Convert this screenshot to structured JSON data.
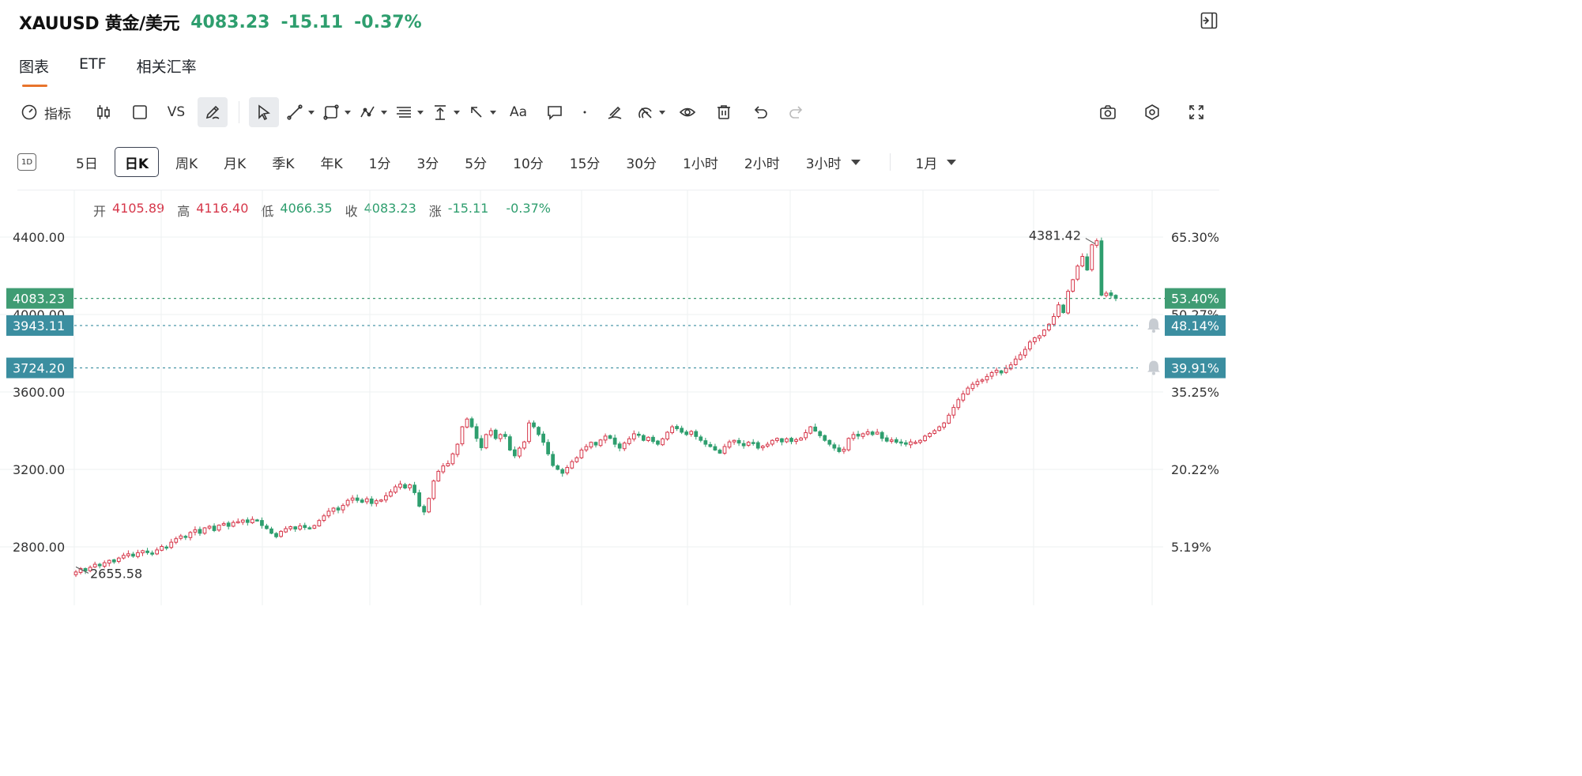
{
  "header": {
    "symbol": "XAUUSD 黄金/美元",
    "price": "4083.23",
    "change": "-15.11",
    "change_pct": "-0.37%",
    "collapse_icon": "collapse-panel-icon"
  },
  "tabs": [
    {
      "label": "图表",
      "active": true
    },
    {
      "label": "ETF",
      "active": false
    },
    {
      "label": "相关汇率",
      "active": false
    }
  ],
  "toolbar": {
    "indicators_label": "指标",
    "vs_label": "VS",
    "text_label": "Aa",
    "tools": [
      "candle-type-icon",
      "rectangle-icon",
      "pen-icon",
      "cursor-icon",
      "trend-line-icon",
      "shape-icon",
      "pattern-icon",
      "fib-icon",
      "measure-icon",
      "arrow-icon",
      "comment-icon",
      "brush-icon",
      "magnet-icon",
      "eye-icon",
      "trash-icon",
      "undo-icon",
      "redo-icon",
      "camera-icon",
      "settings-icon",
      "fullscreen-icon"
    ]
  },
  "periods": {
    "icon_label": "1D",
    "items": [
      "5日",
      "日K",
      "周K",
      "月K",
      "季K",
      "年K",
      "1分",
      "3分",
      "5分",
      "10分",
      "15分",
      "30分",
      "1小时",
      "2小时",
      "3小时"
    ],
    "active": "日K",
    "range": "1月"
  },
  "ohlc": {
    "open_label": "开",
    "open": "4105.89",
    "high_label": "高",
    "high": "4116.40",
    "low_label": "低",
    "low": "4066.35",
    "close_label": "收",
    "close": "4083.23",
    "change_label": "涨",
    "change": "-15.11",
    "change_pct": "-0.37%"
  },
  "colors": {
    "up": "#d6374a",
    "down": "#2e9e6e",
    "last_price_tag": "#3f9c73",
    "alert_tag": "#3b8ea0"
  },
  "chart_data": {
    "type": "candlestick",
    "y_ticks": [
      {
        "price": 4400,
        "label": "4400.00",
        "pct": "65.30%"
      },
      {
        "price": 4000,
        "label": "4000.00",
        "pct": "50.27%"
      },
      {
        "price": 3600,
        "label": "3600.00",
        "pct": "35.25%"
      },
      {
        "price": 3200,
        "label": "3200.00",
        "pct": "20.22%"
      },
      {
        "price": 2800,
        "label": "2800.00",
        "pct": "5.19%"
      }
    ],
    "ylim": [
      2570,
      4680
    ],
    "last_price": {
      "price": 4083.23,
      "label": "4083.23",
      "pct": "53.40%"
    },
    "alerts": [
      {
        "price": 3943.11,
        "label": "3943.11",
        "pct": "48.14%"
      },
      {
        "price": 3724.2,
        "label": "3724.20",
        "pct": "39.91%"
      }
    ],
    "max_marker": {
      "price": 4381.42,
      "label": "4381.42"
    },
    "min_marker": {
      "price": 2655.58,
      "label": "2655.58"
    },
    "closes": [
      2670,
      2688,
      2676,
      2694,
      2710,
      2702,
      2718,
      2730,
      2722,
      2742,
      2756,
      2764,
      2752,
      2770,
      2780,
      2770,
      2762,
      2784,
      2802,
      2796,
      2824,
      2842,
      2856,
      2850,
      2874,
      2888,
      2870,
      2898,
      2906,
      2884,
      2912,
      2920,
      2906,
      2926,
      2930,
      2938,
      2926,
      2942,
      2936,
      2910,
      2894,
      2870,
      2852,
      2880,
      2894,
      2904,
      2892,
      2908,
      2900,
      2894,
      2910,
      2936,
      2960,
      2984,
      3000,
      2990,
      3014,
      3040,
      3052,
      3040,
      3030,
      3048,
      3024,
      3038,
      3042,
      3064,
      3084,
      3110,
      3124,
      3104,
      3120,
      3080,
      3010,
      2980,
      3050,
      3140,
      3190,
      3218,
      3230,
      3280,
      3330,
      3420,
      3460,
      3420,
      3360,
      3312,
      3380,
      3400,
      3360,
      3380,
      3370,
      3300,
      3270,
      3310,
      3342,
      3440,
      3420,
      3380,
      3340,
      3280,
      3220,
      3200,
      3180,
      3210,
      3240,
      3260,
      3300,
      3318,
      3340,
      3326,
      3352,
      3372,
      3360,
      3330,
      3310,
      3336,
      3358,
      3384,
      3378,
      3350,
      3366,
      3344,
      3330,
      3358,
      3392,
      3420,
      3410,
      3392,
      3380,
      3396,
      3370,
      3350,
      3330,
      3318,
      3300,
      3284,
      3318,
      3342,
      3350,
      3336,
      3322,
      3340,
      3336,
      3310,
      3320,
      3330,
      3350,
      3360,
      3342,
      3358,
      3344,
      3354,
      3362,
      3390,
      3420,
      3398,
      3374,
      3350,
      3330,
      3310,
      3292,
      3304,
      3360,
      3380,
      3372,
      3384,
      3394,
      3380,
      3392,
      3360,
      3346,
      3352,
      3340,
      3336,
      3330,
      3342,
      3340,
      3350,
      3372,
      3386,
      3400,
      3420,
      3440,
      3480,
      3520,
      3560,
      3590,
      3620,
      3640,
      3654,
      3662,
      3680,
      3700,
      3712,
      3698,
      3722,
      3740,
      3770,
      3792,
      3820,
      3858,
      3880,
      3890,
      3920,
      3950,
      3990,
      4050,
      4010,
      4120,
      4180,
      4250,
      4300,
      4230,
      4360,
      4381,
      4100,
      4110,
      4098,
      4083
    ]
  }
}
